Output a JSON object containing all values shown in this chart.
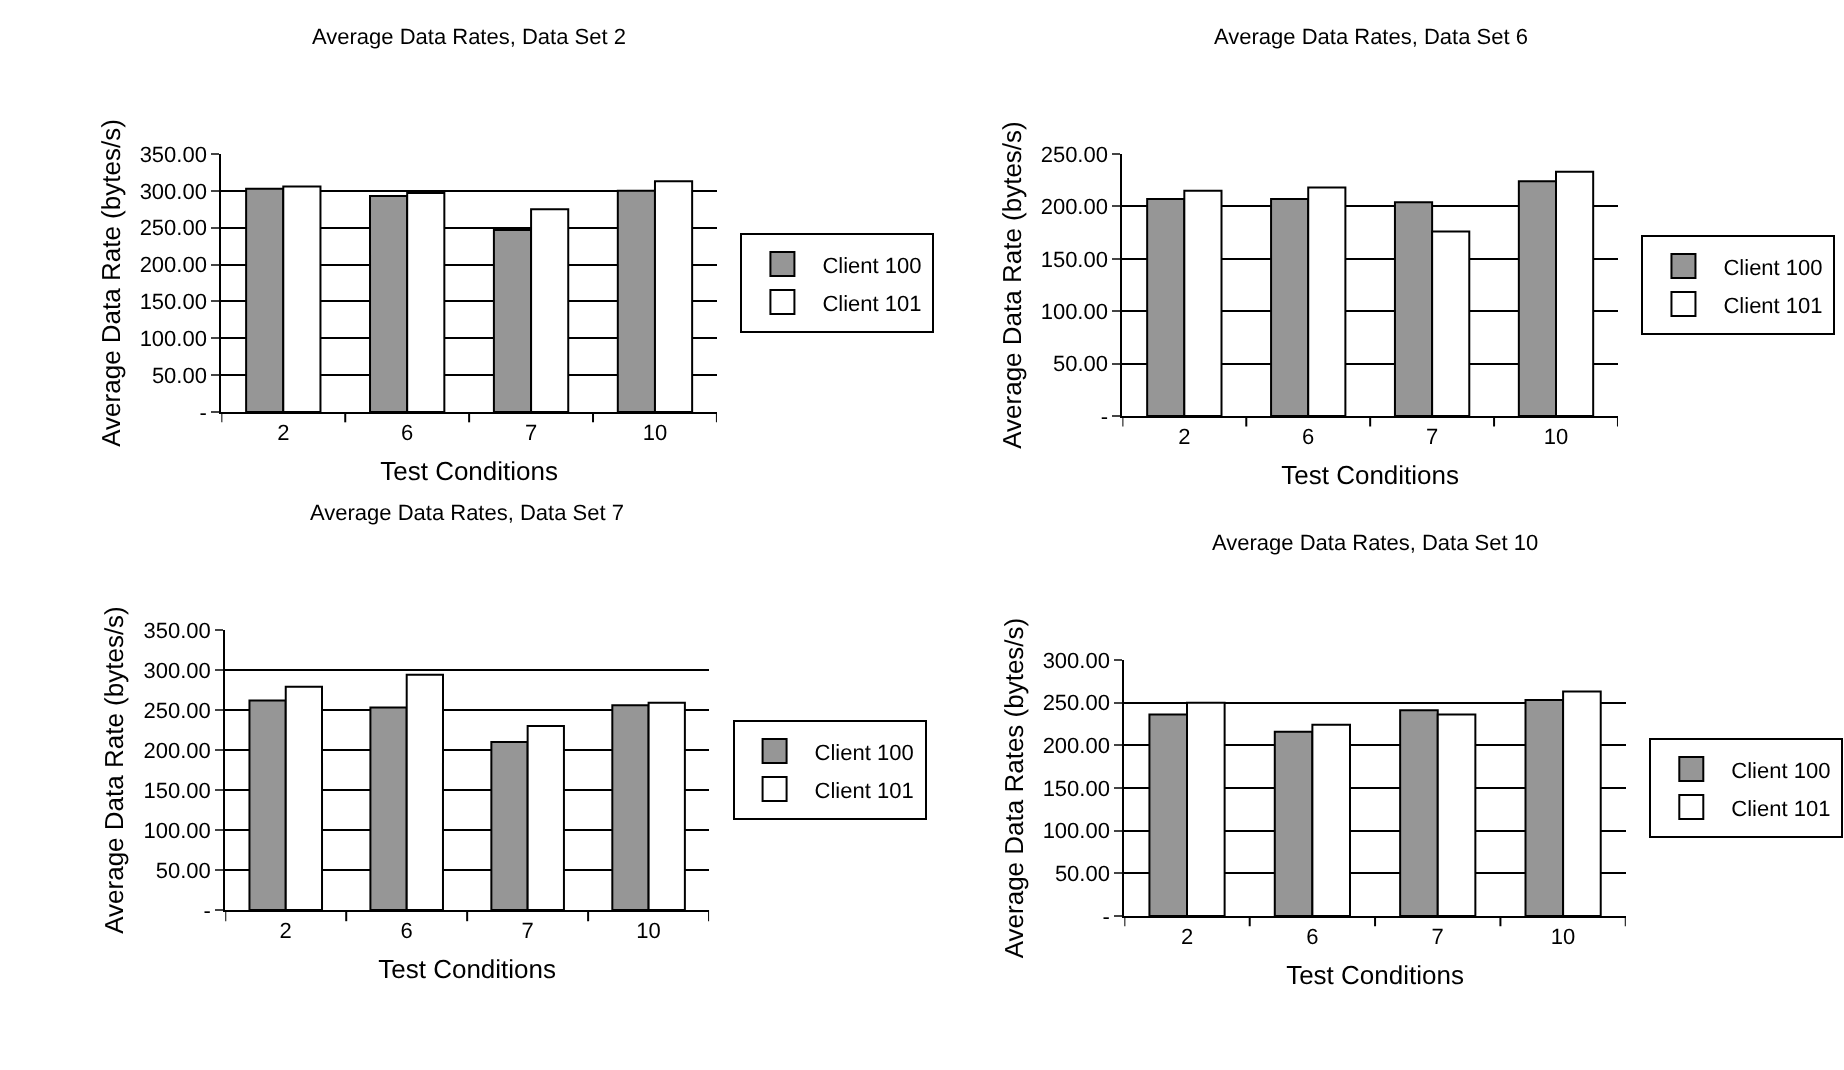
{
  "chart_data": [
    {
      "type": "bar",
      "title": "Average Data Rates, Data Set 2",
      "xlabel": "Test Conditions",
      "ylabel": "Average Data Rate (bytes/s)",
      "categories": [
        "2",
        "6",
        "7",
        "10"
      ],
      "series": [
        {
          "name": "Client 100",
          "color": "#969696",
          "values": [
            303,
            293,
            247,
            300
          ]
        },
        {
          "name": "Client 101",
          "color": "#ffffff",
          "values": [
            306,
            297,
            275,
            313
          ]
        }
      ],
      "ylim": [
        0,
        350
      ],
      "yticks": [
        {
          "value": 0,
          "label": "-"
        },
        {
          "value": 50,
          "label": "50.00"
        },
        {
          "value": 100,
          "label": "100.00"
        },
        {
          "value": 150,
          "label": "150.00"
        },
        {
          "value": 200,
          "label": "200.00"
        },
        {
          "value": 250,
          "label": "250.00"
        },
        {
          "value": 300,
          "label": "300.00"
        },
        {
          "value": 350,
          "label": "350.00"
        }
      ],
      "grid": "y",
      "legend": "right"
    },
    {
      "type": "bar",
      "title": "Average Data Rates, Data Set 6",
      "xlabel": "Test Conditions",
      "ylabel": "Average Data Rate (bytes/s)",
      "categories": [
        "2",
        "6",
        "7",
        "10"
      ],
      "series": [
        {
          "name": "Client 100",
          "color": "#969696",
          "values": [
            207,
            207,
            204,
            224
          ]
        },
        {
          "name": "Client 101",
          "color": "#ffffff",
          "values": [
            215,
            218,
            176,
            233
          ]
        }
      ],
      "ylim": [
        0,
        250
      ],
      "yticks": [
        {
          "value": 0,
          "label": "-"
        },
        {
          "value": 50,
          "label": "50.00"
        },
        {
          "value": 100,
          "label": "100.00"
        },
        {
          "value": 150,
          "label": "150.00"
        },
        {
          "value": 200,
          "label": "200.00"
        },
        {
          "value": 250,
          "label": "250.00"
        }
      ],
      "grid": "y",
      "legend": "right"
    },
    {
      "type": "bar",
      "title": "Average Data Rates, Data Set 7",
      "xlabel": "Test Conditions",
      "ylabel": "Average Data Rate (bytes/s)",
      "categories": [
        "2",
        "6",
        "7",
        "10"
      ],
      "series": [
        {
          "name": "Client 100",
          "color": "#969696",
          "values": [
            262,
            253,
            210,
            256
          ]
        },
        {
          "name": "Client 101",
          "color": "#ffffff",
          "values": [
            279,
            294,
            230,
            259
          ]
        }
      ],
      "ylim": [
        0,
        350
      ],
      "yticks": [
        {
          "value": 0,
          "label": "-"
        },
        {
          "value": 50,
          "label": "50.00"
        },
        {
          "value": 100,
          "label": "100.00"
        },
        {
          "value": 150,
          "label": "150.00"
        },
        {
          "value": 200,
          "label": "200.00"
        },
        {
          "value": 250,
          "label": "250.00"
        },
        {
          "value": 300,
          "label": "300.00"
        },
        {
          "value": 350,
          "label": "350.00"
        }
      ],
      "grid": "y",
      "legend": "right"
    },
    {
      "type": "bar",
      "title": "Average Data Rates, Data Set 10",
      "xlabel": "Test Conditions",
      "ylabel": "Average Data Rates (bytes/s)",
      "categories": [
        "2",
        "6",
        "7",
        "10"
      ],
      "series": [
        {
          "name": "Client 100",
          "color": "#969696",
          "values": [
            236,
            216,
            241,
            253
          ]
        },
        {
          "name": "Client 101",
          "color": "#ffffff",
          "values": [
            250,
            224,
            236,
            263
          ]
        }
      ],
      "ylim": [
        0,
        300
      ],
      "yticks": [
        {
          "value": 0,
          "label": "-"
        },
        {
          "value": 50,
          "label": "50.00"
        },
        {
          "value": 100,
          "label": "100.00"
        },
        {
          "value": 150,
          "label": "150.00"
        },
        {
          "value": 200,
          "label": "200.00"
        },
        {
          "value": 250,
          "label": "250.00"
        },
        {
          "value": 300,
          "label": "300.00"
        }
      ],
      "grid": "y",
      "legend": "right"
    }
  ]
}
